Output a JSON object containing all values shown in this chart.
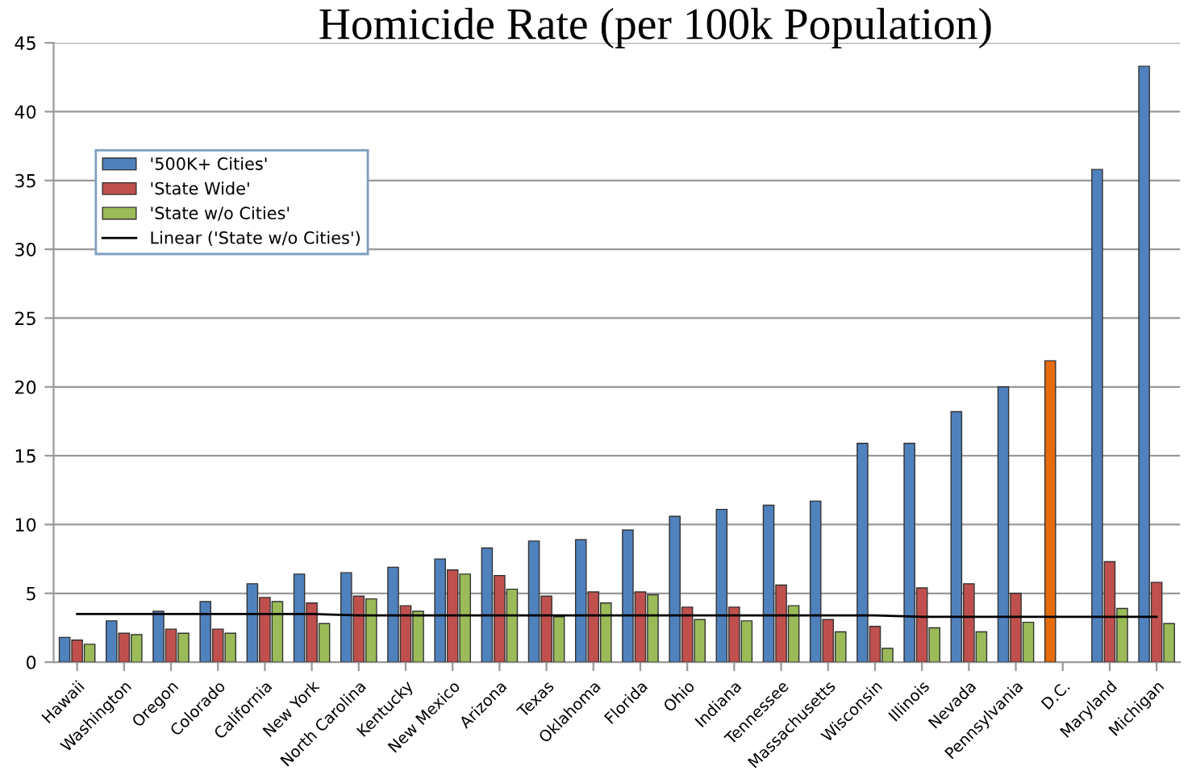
{
  "chart_data": {
    "type": "bar",
    "title": "Homicide Rate (per 100k Population)",
    "categories": [
      "Hawaii",
      "Washington",
      "Oregon",
      "Colorado",
      "California",
      "New York",
      "North Carolina",
      "Kentucky",
      "New Mexico",
      "Arizona",
      "Texas",
      "Oklahoma",
      "Florida",
      "Ohio",
      "Indiana",
      "Tennessee",
      "Massachusetts",
      "Wisconsin",
      "Illinois",
      "Nevada",
      "Pennsylvania",
      "D.C.",
      "Maryland",
      "Michigan"
    ],
    "series": [
      {
        "name": "'500K+ Cities'",
        "color": "#4f81bd",
        "colors": [
          "#4f81bd",
          "#4f81bd",
          "#4f81bd",
          "#4f81bd",
          "#4f81bd",
          "#4f81bd",
          "#4f81bd",
          "#4f81bd",
          "#4f81bd",
          "#4f81bd",
          "#4f81bd",
          "#4f81bd",
          "#4f81bd",
          "#4f81bd",
          "#4f81bd",
          "#4f81bd",
          "#4f81bd",
          "#4f81bd",
          "#4f81bd",
          "#4f81bd",
          "#4f81bd",
          "#e46c0a",
          "#4f81bd",
          "#4f81bd"
        ],
        "values": [
          1.8,
          3.0,
          3.7,
          4.4,
          5.7,
          6.4,
          6.5,
          6.9,
          7.5,
          8.3,
          8.8,
          8.9,
          9.6,
          10.6,
          11.1,
          11.4,
          11.7,
          15.9,
          15.9,
          18.2,
          20.0,
          21.9,
          35.8,
          43.3
        ]
      },
      {
        "name": "'State Wide'",
        "color": "#c0504d",
        "values": [
          1.6,
          2.1,
          2.4,
          2.4,
          4.7,
          4.3,
          4.8,
          4.1,
          6.7,
          6.3,
          4.8,
          5.1,
          5.1,
          4.0,
          4.0,
          5.6,
          3.1,
          2.6,
          5.4,
          5.7,
          5.0,
          null,
          7.3,
          5.8
        ]
      },
      {
        "name": "'State w/o Cities'",
        "color": "#9bbb59",
        "values": [
          1.3,
          2.0,
          2.1,
          2.1,
          4.4,
          2.8,
          4.6,
          3.7,
          6.4,
          5.3,
          3.3,
          4.3,
          4.9,
          3.1,
          3.0,
          4.1,
          2.2,
          1.0,
          2.5,
          2.2,
          2.9,
          null,
          3.9,
          2.8
        ]
      },
      {
        "name": "Linear ('State w/o Cities')",
        "type": "line",
        "color": "#000000",
        "values": [
          3.5,
          3.5,
          3.5,
          3.5,
          3.5,
          3.5,
          3.4,
          3.4,
          3.4,
          3.4,
          3.4,
          3.4,
          3.4,
          3.4,
          3.4,
          3.4,
          3.4,
          3.4,
          3.3,
          3.3,
          3.3,
          3.3,
          3.3,
          3.3
        ]
      }
    ],
    "ylim": [
      0,
      45
    ],
    "yticks": [
      0,
      5,
      10,
      15,
      20,
      25,
      30,
      35,
      40,
      45
    ],
    "grid": "y",
    "legend": "top left"
  }
}
